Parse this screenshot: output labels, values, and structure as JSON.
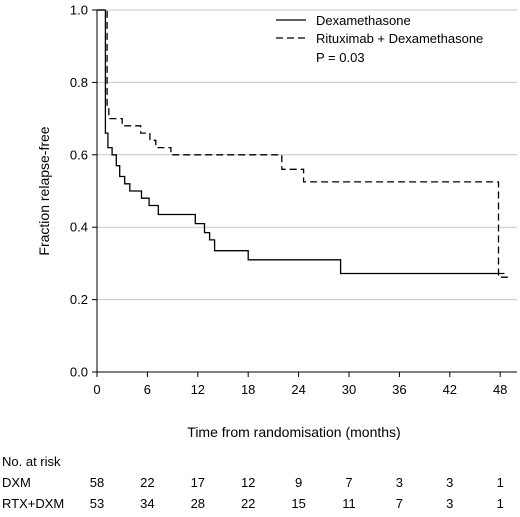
{
  "chart_data": {
    "type": "line",
    "title": "",
    "xlabel": "Time from randomisation (months)",
    "ylabel": "Fraction relapse-free",
    "xlim": [
      0,
      50
    ],
    "ylim": [
      0,
      1
    ],
    "x_ticks": [
      0,
      6,
      12,
      18,
      24,
      30,
      36,
      42,
      48
    ],
    "x_tick_labels": [
      "0",
      "6",
      "12",
      "18",
      "24",
      "30",
      "36",
      "42",
      "48"
    ],
    "y_ticks": [
      0,
      0.2,
      0.4,
      0.6,
      0.8,
      1.0
    ],
    "y_tick_labels": [
      "0.0",
      "0.2",
      "0.4",
      "0.6",
      "0.8",
      "1.0"
    ],
    "grid": "horizontal",
    "legend_position": "top-right",
    "annotation": "P  = 0.03",
    "series": [
      {
        "name": "Dexamethasone",
        "style": "solid",
        "color": "#000000",
        "steps": [
          [
            0,
            1.0
          ],
          [
            1.0,
            0.66
          ],
          [
            1.3,
            0.62
          ],
          [
            1.8,
            0.6
          ],
          [
            2.3,
            0.57
          ],
          [
            2.7,
            0.54
          ],
          [
            3.3,
            0.52
          ],
          [
            3.9,
            0.5
          ],
          [
            5.3,
            0.48
          ],
          [
            6.2,
            0.46
          ],
          [
            7.3,
            0.435
          ],
          [
            11.7,
            0.41
          ],
          [
            12.8,
            0.385
          ],
          [
            13.4,
            0.365
          ],
          [
            14.0,
            0.335
          ],
          [
            18.0,
            0.31
          ],
          [
            29.0,
            0.272
          ],
          [
            48.5,
            0.272
          ]
        ]
      },
      {
        "name": "Rituximab + Dexamethasone",
        "style": "dashed",
        "color": "#000000",
        "steps": [
          [
            0,
            1.0
          ],
          [
            1.2,
            0.73
          ],
          [
            1.4,
            0.7
          ],
          [
            3.0,
            0.68
          ],
          [
            5.2,
            0.66
          ],
          [
            6.3,
            0.64
          ],
          [
            7.0,
            0.62
          ],
          [
            8.8,
            0.6
          ],
          [
            22.0,
            0.56
          ],
          [
            24.6,
            0.525
          ],
          [
            47.8,
            0.525
          ],
          [
            47.8,
            0.262
          ],
          [
            49.3,
            0.262
          ]
        ]
      }
    ],
    "risk_table": {
      "heading": "No. at risk",
      "x": [
        0,
        6,
        12,
        18,
        24,
        30,
        36,
        42,
        48
      ],
      "rows": [
        {
          "label": "DXM",
          "values": [
            "58",
            "22",
            "17",
            "12",
            "9",
            "7",
            "3",
            "3",
            "1"
          ]
        },
        {
          "label": "RTX+DXM",
          "values": [
            "53",
            "34",
            "28",
            "22",
            "15",
            "11",
            "7",
            "3",
            "1"
          ]
        }
      ]
    }
  }
}
